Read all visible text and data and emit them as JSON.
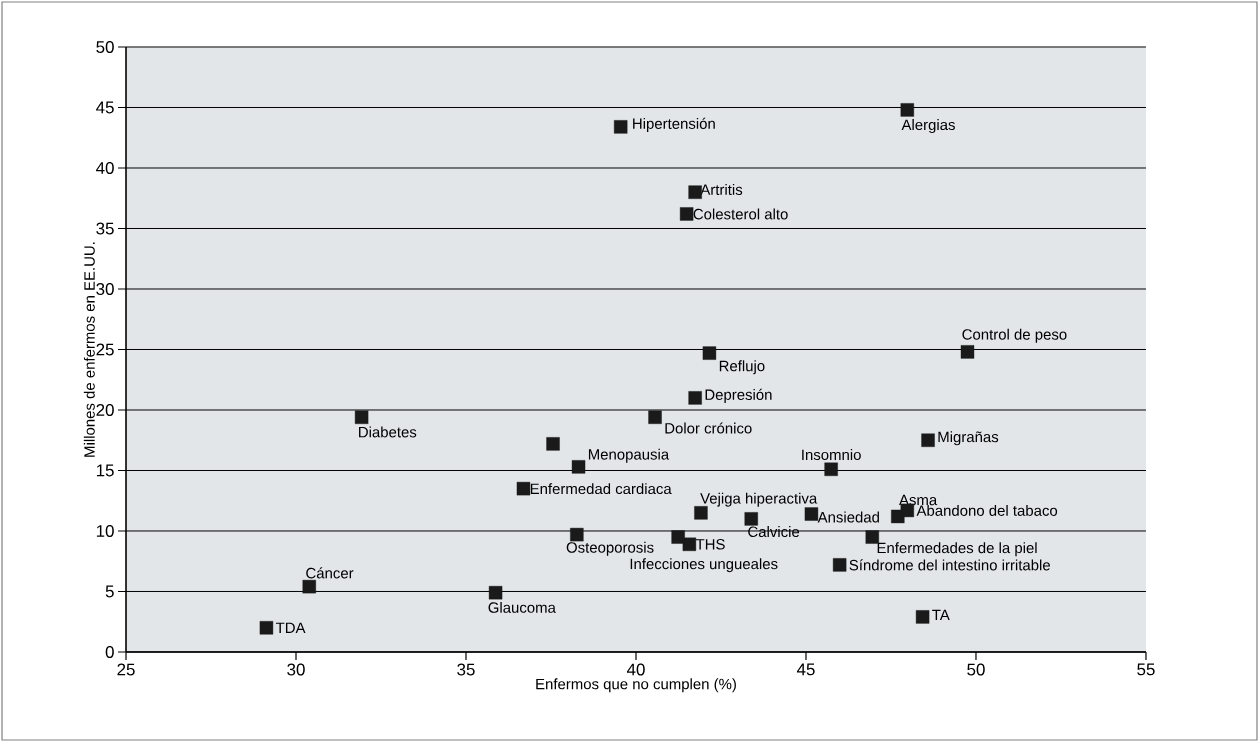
{
  "chart_data": {
    "type": "scatter",
    "xlabel": "Enfermos que no cumplen (%)",
    "ylabel": "Millones de enfermos en EE.UU.",
    "x": [
      39.55,
      47.98,
      41.74,
      41.49,
      49.75,
      42.16,
      41.74,
      40.56,
      31.93,
      38.31,
      45.74,
      48.59,
      36.69,
      41.91,
      43.39,
      45.16,
      47.7,
      47.98,
      38.26,
      41.57,
      41.24,
      46.95,
      45.99,
      30.39,
      35.87,
      29.13,
      48.43,
      37.56
    ],
    "values": [
      43.4,
      44.8,
      38.0,
      36.2,
      24.8,
      24.7,
      21.0,
      19.4,
      19.4,
      15.3,
      15.1,
      17.5,
      13.5,
      11.5,
      11.0,
      11.4,
      11.2,
      11.7,
      9.7,
      8.9,
      9.5,
      9.5,
      7.2,
      5.4,
      4.9,
      2.0,
      2.9,
      17.2
    ],
    "color": "#1a1a1a",
    "marker": "square",
    "grid": "y",
    "xlim": [
      25,
      55
    ],
    "xticks": [
      25,
      30,
      35,
      40,
      45,
      50,
      55
    ],
    "ylim": [
      0,
      50
    ],
    "yticks": [
      0,
      5,
      10,
      15,
      20,
      25,
      30,
      35,
      40,
      45,
      50
    ],
    "annotations": [
      {
        "text": "Hipertensión",
        "x": 39.55,
        "y": 43.4
      },
      {
        "text": "Alergias",
        "x": 47.98,
        "y": 44.8
      },
      {
        "text": "Artritis",
        "x": 41.74,
        "y": 38.0
      },
      {
        "text": "Colesterol alto",
        "x": 41.49,
        "y": 36.2
      },
      {
        "text": "Control de peso",
        "x": 49.75,
        "y": 24.8
      },
      {
        "text": "Reflujo",
        "x": 42.16,
        "y": 24.7
      },
      {
        "text": "Depresión",
        "x": 41.74,
        "y": 21.0
      },
      {
        "text": "Dolor crónico",
        "x": 40.56,
        "y": 19.4
      },
      {
        "text": "Diabetes",
        "x": 31.93,
        "y": 19.4
      },
      {
        "text": "Menopausia",
        "x": 38.31,
        "y": 15.3
      },
      {
        "text": "Insomnio",
        "x": 45.74,
        "y": 15.1
      },
      {
        "text": "Migrañas",
        "x": 48.59,
        "y": 17.5
      },
      {
        "text": "Enfermedad cardiaca",
        "x": 36.69,
        "y": 13.5
      },
      {
        "text": "Vejiga hiperactiva",
        "x": 41.91,
        "y": 11.5
      },
      {
        "text": "Calvicie",
        "x": 43.39,
        "y": 11.0
      },
      {
        "text": "Ansiedad",
        "x": 45.16,
        "y": 11.4
      },
      {
        "text": "Asma",
        "x": 47.7,
        "y": 11.2
      },
      {
        "text": "Abandono del tabaco",
        "x": 47.98,
        "y": 11.7
      },
      {
        "text": "Osteoporosis",
        "x": 38.26,
        "y": 9.7
      },
      {
        "text": "THS",
        "x": 41.57,
        "y": 8.9
      },
      {
        "text": "Infecciones ungueales",
        "x": 41.24,
        "y": 9.5
      },
      {
        "text": "Enfermedades de la piel",
        "x": 46.95,
        "y": 9.5
      },
      {
        "text": "Síndrome del intestino irritable",
        "x": 45.99,
        "y": 7.2
      },
      {
        "text": "Cáncer",
        "x": 30.39,
        "y": 5.4
      },
      {
        "text": "Glaucoma",
        "x": 35.87,
        "y": 4.9
      },
      {
        "text": "TDA",
        "x": 29.13,
        "y": 2.0
      },
      {
        "text": "TA",
        "x": 48.43,
        "y": 2.9
      }
    ]
  }
}
